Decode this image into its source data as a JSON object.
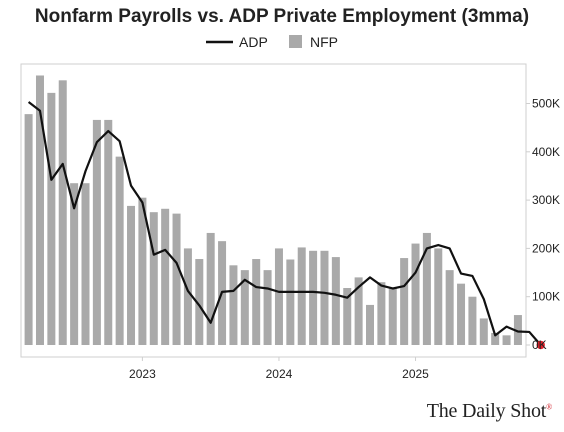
{
  "title": "Nonfarm Payrolls vs. ADP Private Employment (3mma)",
  "credit": "The Daily Shot",
  "credit_mark": "®",
  "colors": {
    "bars": "#a9a9a9",
    "line": "#111111",
    "endpoint": "#e0202a",
    "frame": "#cfcfcf"
  },
  "chart_data": {
    "type": "bar+line",
    "ylim": [
      -10000,
      580000
    ],
    "y_ticks": [
      0,
      100000,
      200000,
      300000,
      400000,
      500000
    ],
    "y_tick_labels": [
      "0K",
      "100K",
      "200K",
      "300K",
      "400K",
      "500K"
    ],
    "x_tick_labels": [
      {
        "label": "2023",
        "month": "2023-01"
      },
      {
        "label": "2024",
        "month": "2024-01"
      },
      {
        "label": "2025",
        "month": "2025-01"
      }
    ],
    "legend": [
      {
        "name": "ADP",
        "kind": "line"
      },
      {
        "name": "NFP",
        "kind": "bar"
      }
    ],
    "months": [
      "2022-03",
      "2022-04",
      "2022-05",
      "2022-06",
      "2022-07",
      "2022-08",
      "2022-09",
      "2022-10",
      "2022-11",
      "2022-12",
      "2023-01",
      "2023-02",
      "2023-03",
      "2023-04",
      "2023-05",
      "2023-06",
      "2023-07",
      "2023-08",
      "2023-09",
      "2023-10",
      "2023-11",
      "2023-12",
      "2024-01",
      "2024-02",
      "2024-03",
      "2024-04",
      "2024-05",
      "2024-06",
      "2024-07",
      "2024-08",
      "2024-09",
      "2024-10",
      "2024-11",
      "2024-12",
      "2025-01",
      "2025-02",
      "2025-03",
      "2025-04",
      "2025-05",
      "2025-06",
      "2025-07",
      "2025-08",
      "2025-09",
      "2025-10"
    ],
    "series": [
      {
        "name": "NFP",
        "type": "bar",
        "values": [
          478000,
          558000,
          522000,
          548000,
          335000,
          335000,
          466000,
          466000,
          390000,
          288000,
          305000,
          275000,
          282000,
          272000,
          200000,
          178000,
          232000,
          215000,
          165000,
          155000,
          178000,
          155000,
          200000,
          177000,
          202000,
          195000,
          195000,
          182000,
          118000,
          140000,
          83000,
          130000,
          117000,
          180000,
          210000,
          232000,
          200000,
          155000,
          127000,
          100000,
          55000,
          25000,
          20000,
          62000
        ]
      },
      {
        "name": "ADP",
        "type": "line",
        "x": [
          "2022-03",
          "2022-04",
          "2022-05",
          "2022-06",
          "2022-07",
          "2022-08",
          "2022-09",
          "2022-10",
          "2022-11",
          "2022-12",
          "2023-01",
          "2023-02",
          "2023-03",
          "2023-04",
          "2023-05",
          "2023-06",
          "2023-07",
          "2023-08",
          "2023-09",
          "2023-10",
          "2023-11",
          "2023-12",
          "2024-01",
          "2024-02",
          "2024-03",
          "2024-04",
          "2024-05",
          "2024-06",
          "2024-07",
          "2024-08",
          "2024-09",
          "2024-10",
          "2024-11",
          "2024-12",
          "2025-01",
          "2025-02",
          "2025-03",
          "2025-04",
          "2025-05",
          "2025-06",
          "2025-07",
          "2025-08",
          "2025-09",
          "2025-10",
          "2025-11"
        ],
        "values": [
          503000,
          485000,
          342000,
          375000,
          283000,
          360000,
          420000,
          443000,
          422000,
          330000,
          295000,
          187000,
          197000,
          170000,
          112000,
          82000,
          46000,
          110000,
          112000,
          135000,
          120000,
          117000,
          110000,
          110000,
          110000,
          110000,
          108000,
          104000,
          98000,
          120000,
          140000,
          123000,
          117000,
          122000,
          150000,
          200000,
          207000,
          200000,
          148000,
          143000,
          95000,
          20000,
          38000,
          28000,
          27000
        ]
      }
    ],
    "endpoint": {
      "month": "2025-12",
      "value": 0
    }
  }
}
